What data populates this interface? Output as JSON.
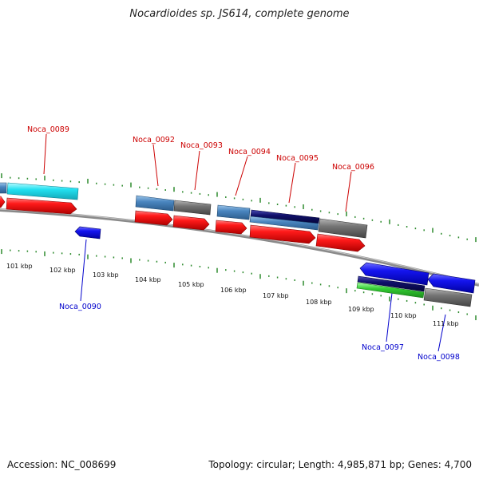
{
  "title": "Nocardioides sp. JS614, complete genome",
  "footer": {
    "accession": "Accession: NC_008699",
    "summary": "Topology: circular; Length: 4,985,871 bp; Genes: 4,700"
  },
  "colors": {
    "backbone": "#8a8a8a",
    "tick": "#2e8b2e",
    "label_forward": "#cc0000",
    "label_reverse": "#0000cc",
    "cds": "#ee1111",
    "cds_reverse": "#1010ee",
    "cyan_feature": "#22e0f0",
    "steelblue_feature": "#4a86c0",
    "gray_feature": "#6e6e6e",
    "navy_feature": "#10106a",
    "green_feature": "#33cc33"
  },
  "scale_labels": [
    "101 kbp",
    "102 kbp",
    "103 kbp",
    "104 kbp",
    "105 kbp",
    "106 kbp",
    "107 kbp",
    "108 kbp",
    "109 kbp",
    "110 kbp",
    "111 kbp"
  ],
  "gene_labels": [
    {
      "text": "Noca_0089",
      "strand": "forward"
    },
    {
      "text": "Noca_0092",
      "strand": "forward"
    },
    {
      "text": "Noca_0093",
      "strand": "forward"
    },
    {
      "text": "Noca_0094",
      "strand": "forward"
    },
    {
      "text": "Noca_0095",
      "strand": "forward"
    },
    {
      "text": "Noca_0096",
      "strand": "forward"
    },
    {
      "text": "Noca_0090",
      "strand": "reverse"
    },
    {
      "text": "Noca_0097",
      "strand": "reverse"
    },
    {
      "text": "Noca_0098",
      "strand": "reverse"
    }
  ]
}
